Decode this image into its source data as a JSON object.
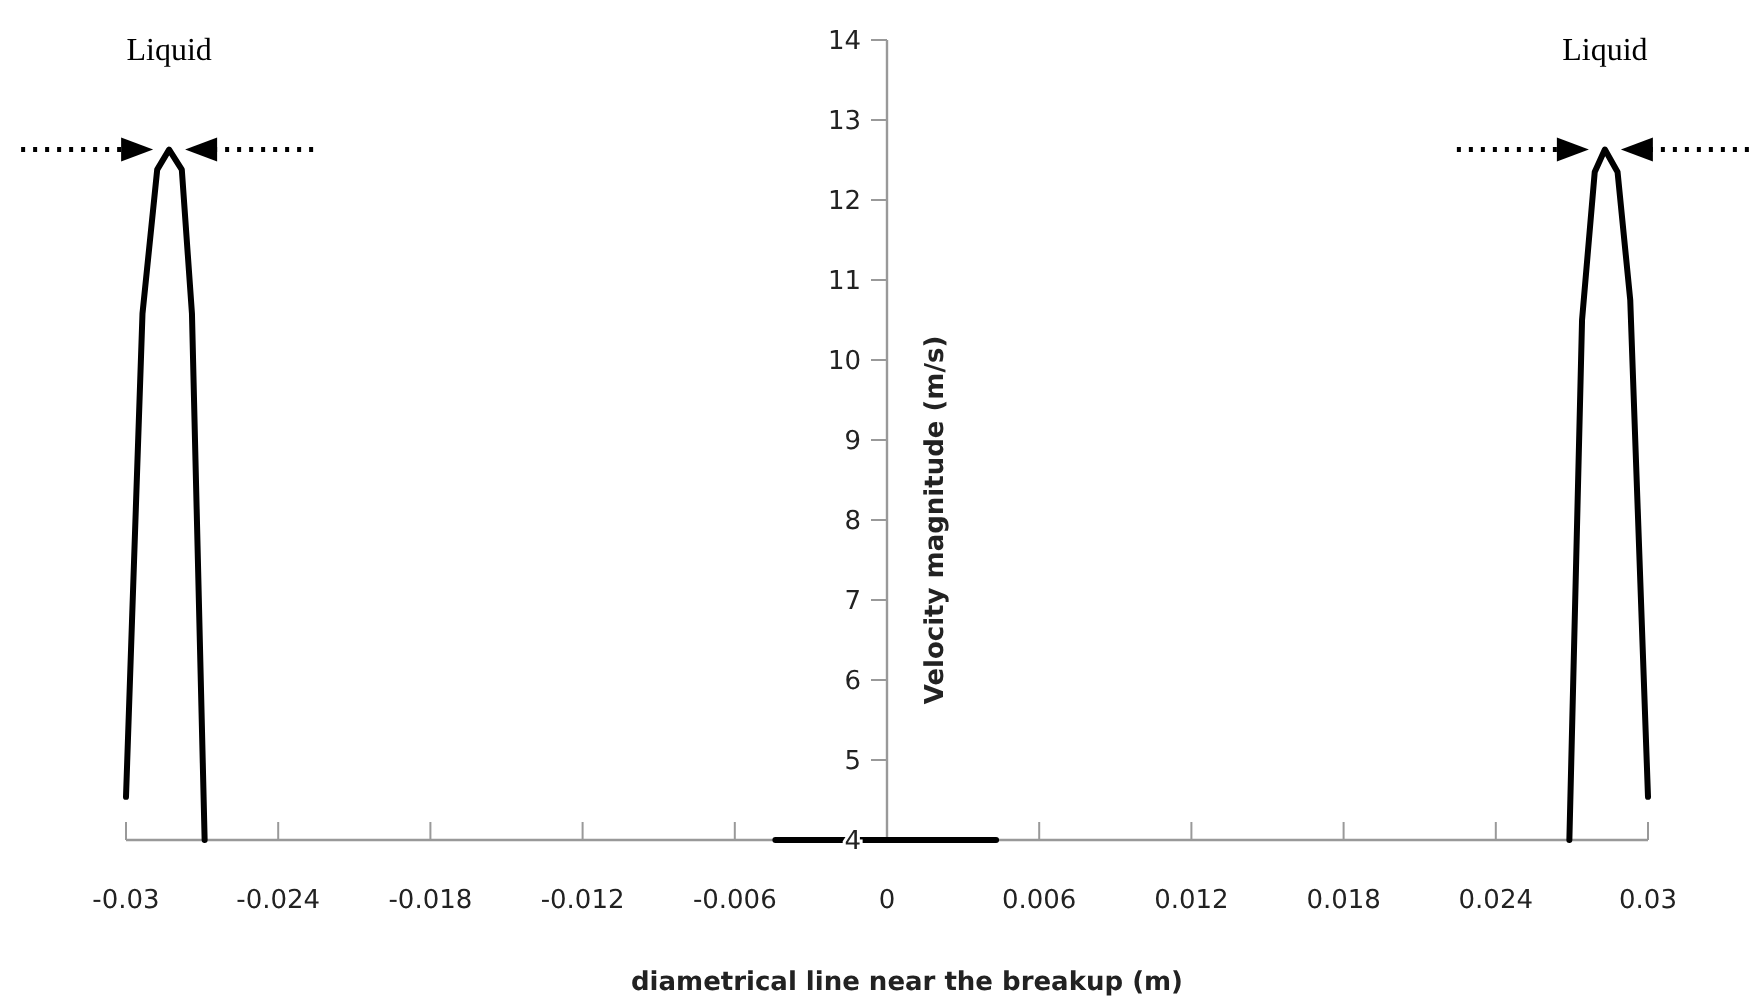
{
  "chart_data": {
    "type": "line",
    "xlabel": "diametrical line near the breakup (m)",
    "ylabel": "Velocity magnitude (m/s)",
    "x": [
      -0.03,
      -0.02935,
      -0.02877,
      -0.0283,
      -0.0278,
      -0.0274,
      -0.0269,
      -0.015,
      -0.0044,
      0.0043,
      0.015,
      0.0269,
      0.0274,
      0.0279,
      0.0283,
      0.0288,
      0.0293,
      0.03
    ],
    "series": [
      {
        "color": "#000000",
        "values": [
          4.54,
          10.58,
          12.38,
          12.63,
          12.38,
          10.58,
          4,
          null,
          4,
          4,
          null,
          4,
          10.5,
          12.35,
          12.63,
          12.35,
          10.75,
          4.54
        ]
      }
    ],
    "xlim": [
      -0.03,
      0.03
    ],
    "xticks": [
      -0.03,
      -0.024,
      -0.018,
      -0.012,
      -0.006,
      0,
      0.006,
      0.012,
      0.018,
      0.024,
      0.03
    ],
    "ylim": [
      4,
      14
    ],
    "yticks": [
      4,
      5,
      6,
      7,
      8,
      9,
      10,
      11,
      12,
      13,
      14
    ],
    "grid": false,
    "marker": "none",
    "line_style": "solid",
    "annotations": [
      {
        "text": "Liquid",
        "x": -0.0283,
        "y": 12.63
      },
      {
        "text": "Liquid",
        "x": 0.0283,
        "y": 12.63
      }
    ]
  }
}
